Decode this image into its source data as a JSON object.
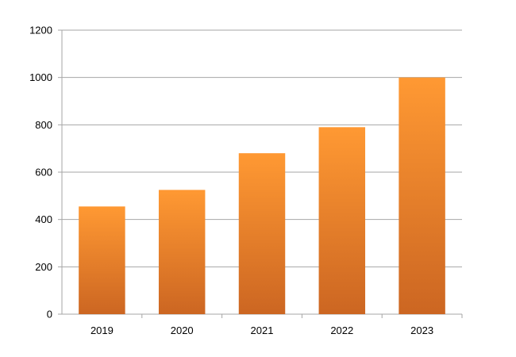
{
  "chart_data": {
    "type": "bar",
    "categories": [
      "2019",
      "2020",
      "2021",
      "2022",
      "2023"
    ],
    "values": [
      455,
      525,
      680,
      790,
      1000
    ],
    "title": "",
    "xlabel": "",
    "ylabel": "",
    "ylim": [
      0,
      1200
    ],
    "yticks": [
      0,
      200,
      400,
      600,
      800,
      1000,
      1200
    ],
    "ytick_labels": [
      "0",
      "200",
      "400",
      "600",
      "800",
      "1000",
      "1200"
    ],
    "grid": true,
    "legend": "none",
    "colors": {
      "bar_top": "#FF9933",
      "bar_bottom": "#CC6622",
      "grid": "#A6A6A6",
      "axis": "#A6A6A6"
    }
  }
}
